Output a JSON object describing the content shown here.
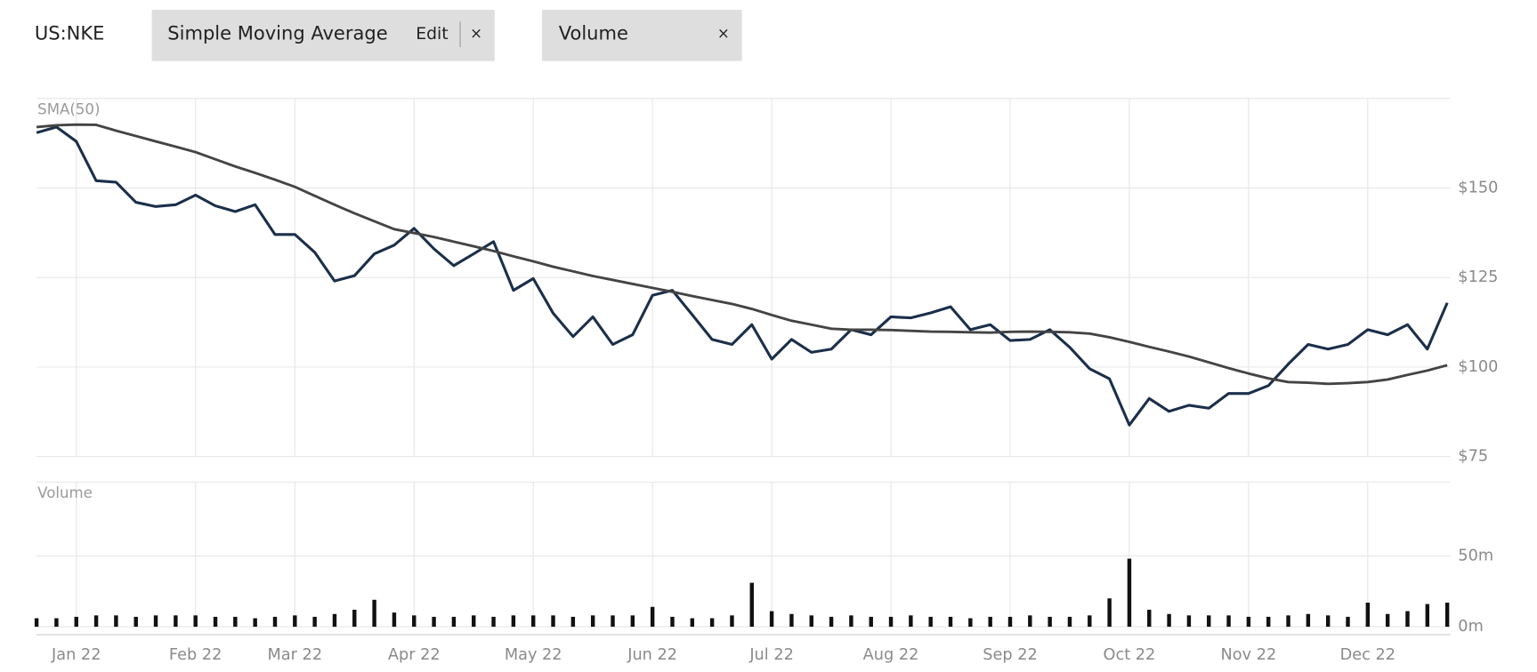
{
  "toolbar": {
    "symbol": "US:NKE",
    "indicators": [
      {
        "label": "Simple Moving Average",
        "edit": "Edit",
        "close": "×"
      },
      {
        "label": "Volume",
        "close": "×"
      }
    ]
  },
  "chart_data": [
    {
      "type": "line",
      "title": "SMA(50)",
      "series": [
        {
          "color": "#1b2f4a",
          "values": [
            165.4,
            167,
            163,
            152,
            151.6,
            146,
            144.8,
            145.3,
            148,
            145,
            143.4,
            145.3,
            137,
            137,
            132,
            124,
            125.5,
            131.6,
            134,
            138.7,
            133,
            128.3,
            131.6,
            135,
            121.4,
            124.7,
            115,
            108.5,
            114,
            106.3,
            109,
            120,
            121.4,
            114.6,
            107.7,
            106.3,
            111.8,
            102.2,
            107.7,
            104.1,
            105,
            110.4,
            109,
            114,
            113.7,
            115.1,
            116.8,
            110.4,
            111.8,
            107.4,
            107.7,
            110.4,
            105.5,
            99.5,
            96.7,
            83.8,
            91.2,
            87.6,
            89.3,
            88.5,
            92.6,
            92.6,
            94.8,
            100.8,
            106.3,
            105,
            106.3,
            110.4,
            109,
            111.8,
            105,
            117.9
          ]
        },
        {
          "color": "#444444",
          "values": [
            167,
            167.5,
            167.7,
            167.6,
            166,
            164.5,
            163,
            161.5,
            160,
            158,
            156,
            154.2,
            152.3,
            150.3,
            147.8,
            145.3,
            142.9,
            140.7,
            138.5,
            137.4,
            136.3,
            135,
            133.7,
            132.4,
            130.9,
            129.5,
            128,
            126.7,
            125.4,
            124.3,
            123.2,
            122.1,
            121,
            119.8,
            118.7,
            117.6,
            116.2,
            114.5,
            112.9,
            111.8,
            110.7,
            110.4,
            110.4,
            110.3,
            110.1,
            109.9,
            109.8,
            109.7,
            109.6,
            109.8,
            109.9,
            109.8,
            109.7,
            109.3,
            108.3,
            107,
            105.6,
            104.3,
            102.9,
            101.3,
            99.7,
            98.2,
            96.8,
            95.8,
            95.6,
            95.3,
            95.5,
            95.8,
            96.5,
            97.8,
            99,
            100.5
          ]
        }
      ],
      "ylim": [
        75,
        175
      ],
      "yticks": [
        {
          "value": 75,
          "label": "$75"
        },
        {
          "value": 100,
          "label": "$100"
        },
        {
          "value": 125,
          "label": "$125"
        },
        {
          "value": 150,
          "label": "$150"
        }
      ],
      "grid": true
    },
    {
      "type": "bar",
      "title": "Volume",
      "color": "#111111",
      "categories": [
        null,
        null,
        "Jan 22",
        null,
        null,
        null,
        null,
        null,
        "Feb 22",
        null,
        null,
        null,
        null,
        "Mar 22",
        null,
        null,
        null,
        null,
        null,
        "Apr 22",
        null,
        null,
        null,
        null,
        null,
        "May 22",
        null,
        null,
        null,
        null,
        null,
        "Jun 22",
        null,
        null,
        null,
        null,
        null,
        "Jul 22",
        null,
        null,
        null,
        null,
        null,
        "Aug 22",
        null,
        null,
        null,
        null,
        null,
        "Sep 22",
        null,
        null,
        null,
        null,
        null,
        "Oct 22",
        null,
        null,
        null,
        null,
        null,
        "Nov 22",
        null,
        null,
        null,
        null,
        null,
        "Dec 22",
        null,
        null,
        null,
        null
      ],
      "values": [
        6,
        6,
        7,
        8,
        8,
        7,
        8,
        8,
        8,
        7,
        7,
        6,
        7,
        8,
        7,
        9,
        12,
        19,
        10,
        8,
        7,
        7,
        8,
        7,
        8,
        8,
        8,
        7,
        8,
        8,
        8,
        14,
        7,
        6,
        6,
        8,
        31,
        11,
        9,
        8,
        7,
        8,
        7,
        7,
        8,
        7,
        7,
        6,
        7,
        7,
        8,
        7,
        7,
        8,
        20,
        48,
        12,
        9,
        8,
        8,
        8,
        7,
        7,
        8,
        9,
        8,
        7,
        17,
        9,
        11,
        16,
        17
      ],
      "ylim": [
        0,
        102
      ],
      "yticks": [
        {
          "value": 0,
          "label": "0m"
        },
        {
          "value": 50,
          "label": "50m"
        }
      ],
      "grid": true
    }
  ]
}
